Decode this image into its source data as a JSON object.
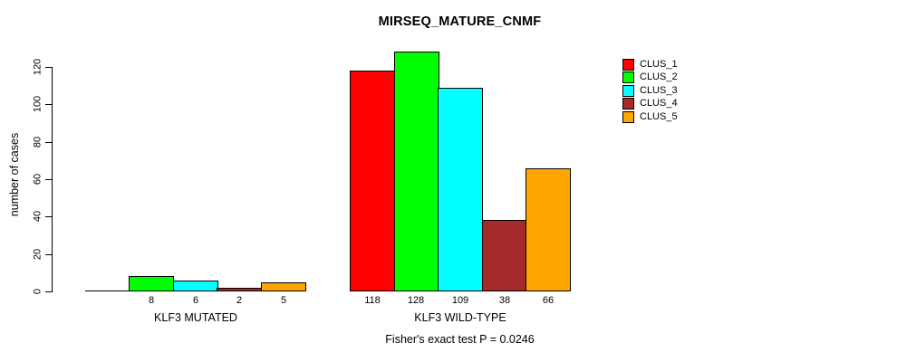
{
  "chart_data": {
    "type": "bar",
    "title": "MIRSEQ_MATURE_CNMF",
    "ylabel": "number of cases",
    "xlabel": "",
    "ylim": [
      0,
      120
    ],
    "yticks": [
      0,
      20,
      40,
      60,
      80,
      100,
      120
    ],
    "grid": false,
    "legend_position": "top-right",
    "annotation": "Fisher's exact test P = 0.0246",
    "series": [
      {
        "name": "CLUS_1",
        "color": "#FF0000"
      },
      {
        "name": "CLUS_2",
        "color": "#00FF00"
      },
      {
        "name": "CLUS_3",
        "color": "#00FFFF"
      },
      {
        "name": "CLUS_4",
        "color": "#A52A2A"
      },
      {
        "name": "CLUS_5",
        "color": "#FFA500"
      }
    ],
    "groups": [
      {
        "label": "KLF3 MUTATED",
        "values": [
          0,
          8,
          6,
          2,
          5
        ],
        "bar_labels": [
          "",
          "8",
          "6",
          "2",
          "5"
        ]
      },
      {
        "label": "KLF3 WILD-TYPE",
        "values": [
          118,
          128,
          109,
          38,
          66
        ],
        "bar_labels": [
          "118",
          "128",
          "109",
          "38",
          "66"
        ]
      }
    ]
  }
}
